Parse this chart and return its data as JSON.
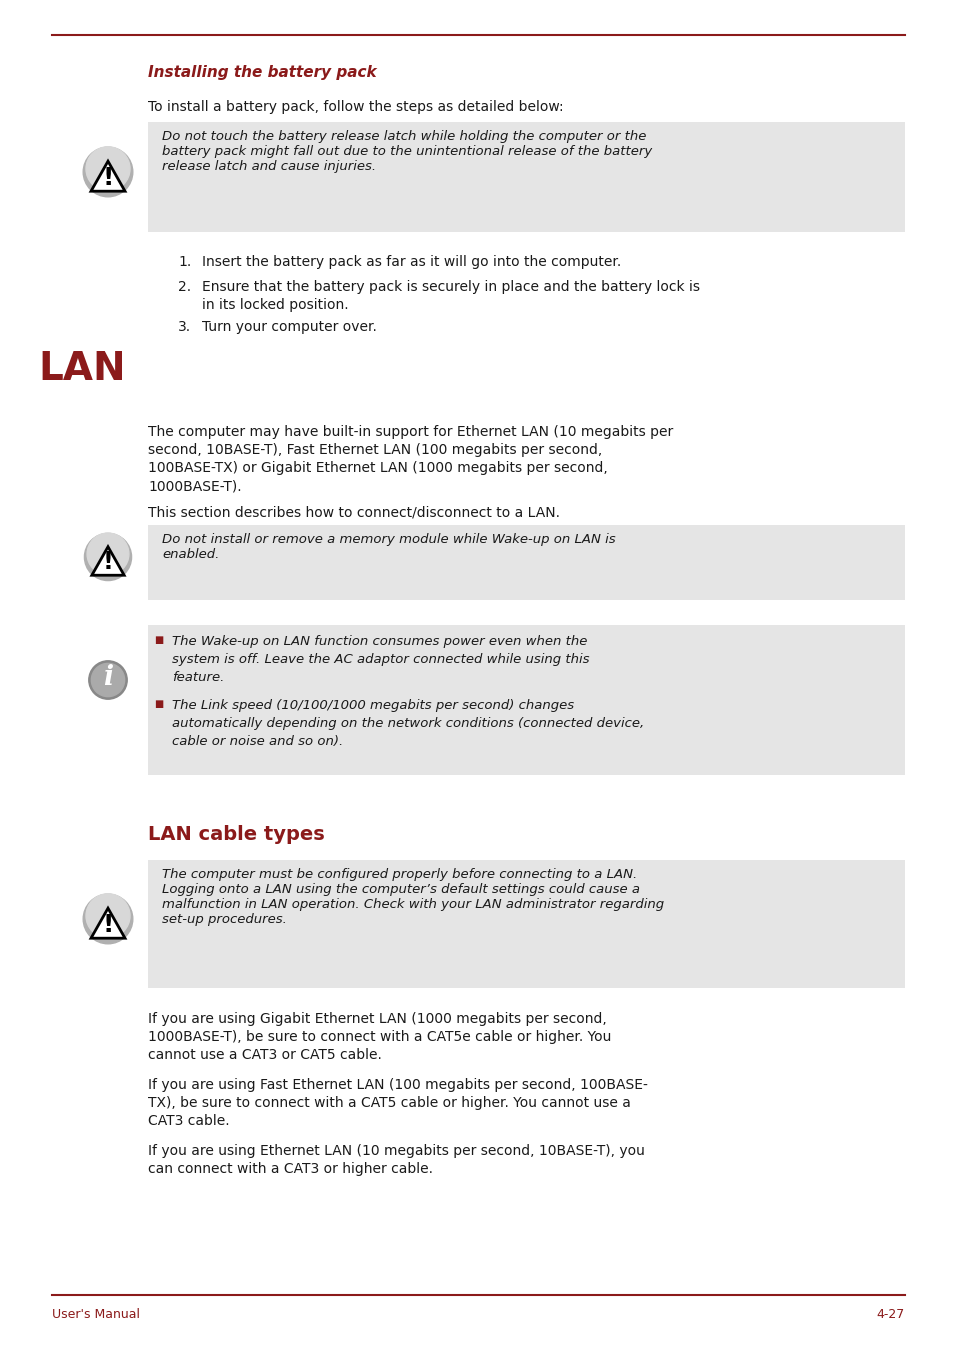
{
  "bg_color": "#ffffff",
  "top_line_color": "#8B1A1A",
  "footer_line_color": "#8B1A1A",
  "red_color": "#8B1A1A",
  "gray_bg": "#e5e5e5",
  "text_color": "#1a1a1a",
  "page_width": 9.54,
  "page_height": 13.45,
  "section_title_battery": "Installing the battery pack",
  "footer_left": "User's Manual",
  "footer_right": "4-27",
  "lan_heading": "LAN",
  "lan_cable_heading": "LAN cable types",
  "caution1_text": "Do not touch the battery release latch while holding the computer or the\nbattery pack might fall out due to the unintentional release of the battery\nrelease latch and cause injuries.",
  "intro_text": "To install a battery pack, follow the steps as detailed below:",
  "list_item1": "Insert the battery pack as far as it will go into the computer.",
  "list_item2a": "Ensure that the battery pack is securely in place and the battery lock is",
  "list_item2b": "in its locked position.",
  "list_item3": "Turn your computer over.",
  "lan_body1a": "The computer may have built-in support for Ethernet LAN (10 megabits per",
  "lan_body1b": "second, 10BASE-T), Fast Ethernet LAN (100 megabits per second,",
  "lan_body1c": "100BASE-TX) or Gigabit Ethernet LAN (1000 megabits per second,",
  "lan_body1d": "1000BASE-T).",
  "lan_body2": "This section describes how to connect/disconnect to a LAN.",
  "caution2_text": "Do not install or remove a memory module while Wake-up on LAN is\nenabled.",
  "info_bullet1a": "The Wake-up on LAN function consumes power even when the",
  "info_bullet1b": "system is off. Leave the AC adaptor connected while using this",
  "info_bullet1c": "feature.",
  "info_bullet2a": "The Link speed (10/100/1000 megabits per second) changes",
  "info_bullet2b": "automatically depending on the network conditions (connected device,",
  "info_bullet2c": "cable or noise and so on).",
  "caution3_text": "The computer must be configured properly before connecting to a LAN.\nLogging onto a LAN using the computer’s default settings could cause a\nmalfunction in LAN operation. Check with your LAN administrator regarding\nset-up procedures.",
  "cable_para1a": "If you are using Gigabit Ethernet LAN (1000 megabits per second,",
  "cable_para1b": "1000BASE-T), be sure to connect with a CAT5e cable or higher. You",
  "cable_para1c": "cannot use a CAT3 or CAT5 cable.",
  "cable_para2a": "If you are using Fast Ethernet LAN (100 megabits per second, 100BASE-",
  "cable_para2b": "TX), be sure to connect with a CAT5 cable or higher. You cannot use a",
  "cable_para2c": "CAT3 cable.",
  "cable_para3a": "If you are using Ethernet LAN (10 megabits per second, 10BASE-T), you",
  "cable_para3b": "can connect with a CAT3 or higher cable."
}
